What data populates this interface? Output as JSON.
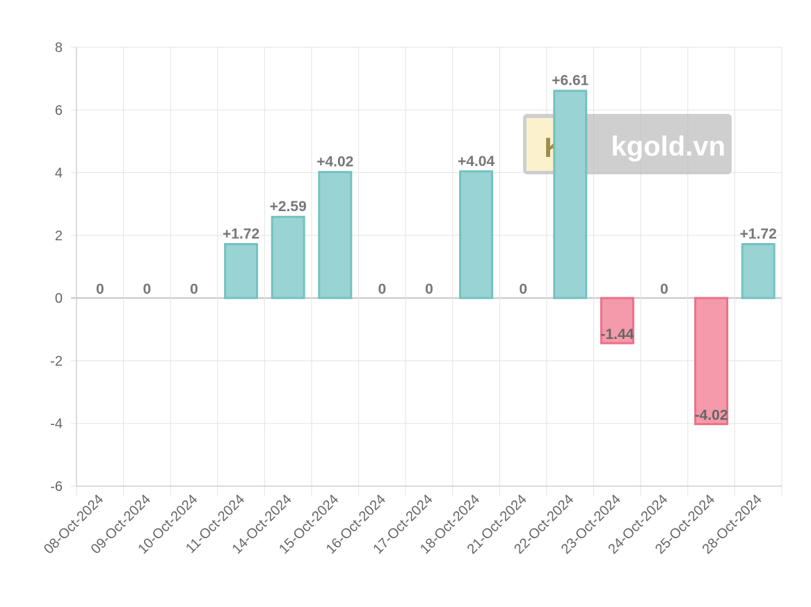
{
  "chart_data": {
    "type": "bar",
    "categories": [
      "08-Oct-2024",
      "09-Oct-2024",
      "10-Oct-2024",
      "11-Oct-2024",
      "14-Oct-2024",
      "15-Oct-2024",
      "16-Oct-2024",
      "17-Oct-2024",
      "18-Oct-2024",
      "21-Oct-2024",
      "22-Oct-2024",
      "23-Oct-2024",
      "24-Oct-2024",
      "25-Oct-2024",
      "28-Oct-2024"
    ],
    "values": [
      0,
      0,
      0,
      1.72,
      2.59,
      4.02,
      0,
      0,
      4.04,
      0,
      6.61,
      -1.44,
      0,
      -4.02,
      1.72
    ],
    "data_labels": [
      "0",
      "0",
      "0",
      "+1.72",
      "+2.59",
      "+4.02",
      "0",
      "0",
      "+4.04",
      "0",
      "+6.61",
      "-1.44",
      "0",
      "-4.02",
      "+1.72"
    ],
    "y_ticks": [
      "8",
      "6",
      "4",
      "2",
      "0",
      "-2",
      "-4",
      "-6"
    ],
    "ylim": [
      -6,
      8
    ],
    "grid": true,
    "colors": {
      "positive_fill": "#9ad3d3",
      "positive_border": "#73c2bf",
      "negative_fill": "#f49aaa",
      "negative_border": "#eb7088",
      "label": "#777777",
      "grid": "#e3e3e3",
      "axis": "#cfcfcf"
    }
  },
  "watermark": {
    "logo_letter": "K",
    "text": "kgold.vn"
  }
}
